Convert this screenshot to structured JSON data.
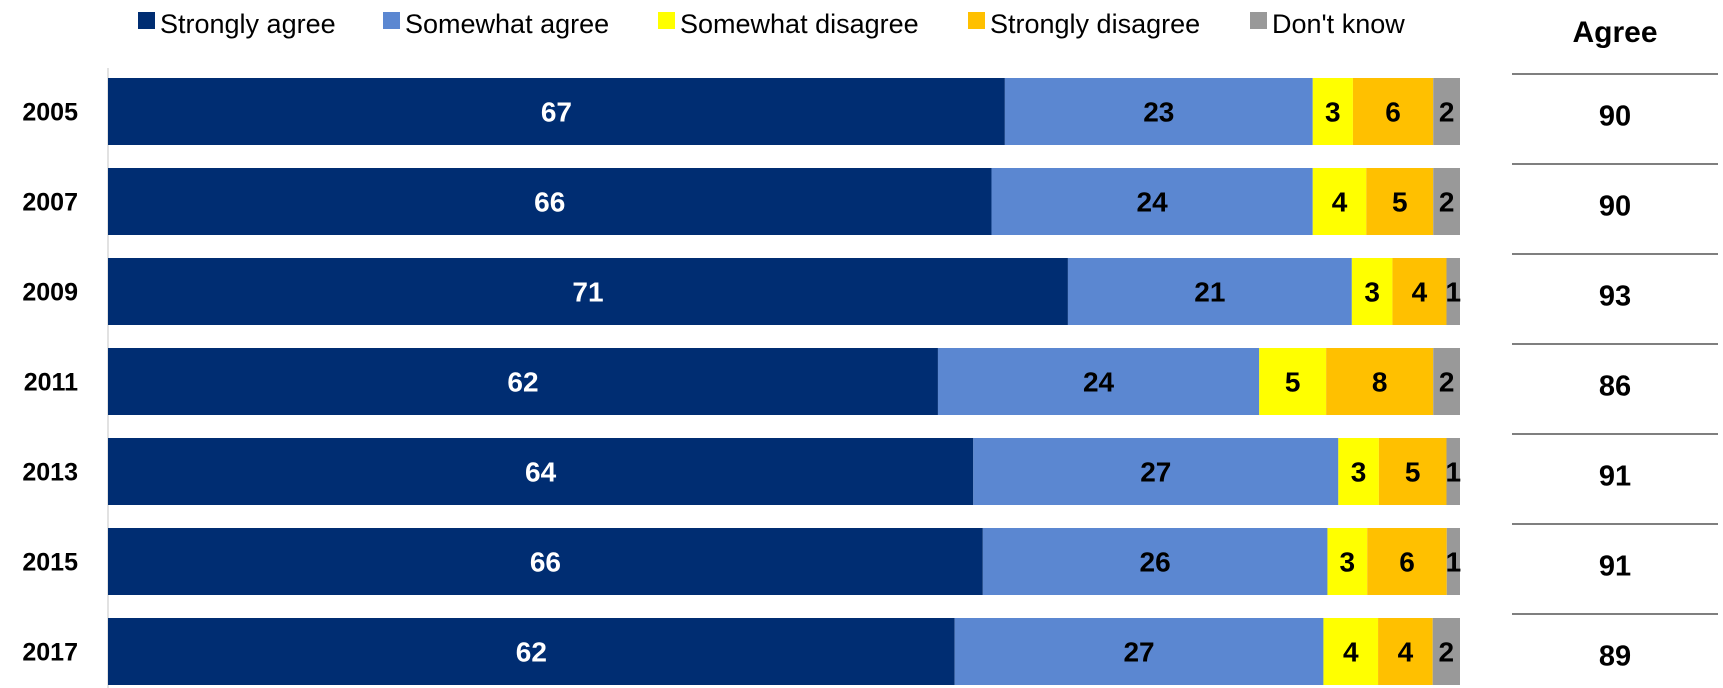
{
  "chart_data": {
    "type": "bar",
    "orientation": "horizontal",
    "stacked": true,
    "categories": [
      "2005",
      "2007",
      "2009",
      "2011",
      "2013",
      "2015",
      "2017"
    ],
    "series": [
      {
        "name": "Strongly agree",
        "color": "#002D72",
        "label_color": "#FFFFFF",
        "values": [
          67,
          66,
          71,
          62,
          64,
          66,
          62
        ]
      },
      {
        "name": "Somewhat agree",
        "color": "#5B87D1",
        "label_color": "#000000",
        "values": [
          23,
          24,
          21,
          24,
          27,
          26,
          27
        ]
      },
      {
        "name": "Somewhat disagree",
        "color": "#FFFF00",
        "label_color": "#000000",
        "values": [
          3,
          4,
          3,
          5,
          3,
          3,
          4
        ]
      },
      {
        "name": "Strongly disagree",
        "color": "#FFC000",
        "label_color": "#000000",
        "values": [
          6,
          5,
          4,
          8,
          5,
          6,
          4
        ]
      },
      {
        "name": "Don't know",
        "color": "#999999",
        "label_color": "#000000",
        "values": [
          2,
          2,
          1,
          2,
          1,
          1,
          2
        ]
      }
    ],
    "agree_column": {
      "header": "Agree",
      "values": [
        90,
        90,
        93,
        86,
        91,
        91,
        89
      ]
    },
    "legend_position": "top",
    "grid": false
  }
}
